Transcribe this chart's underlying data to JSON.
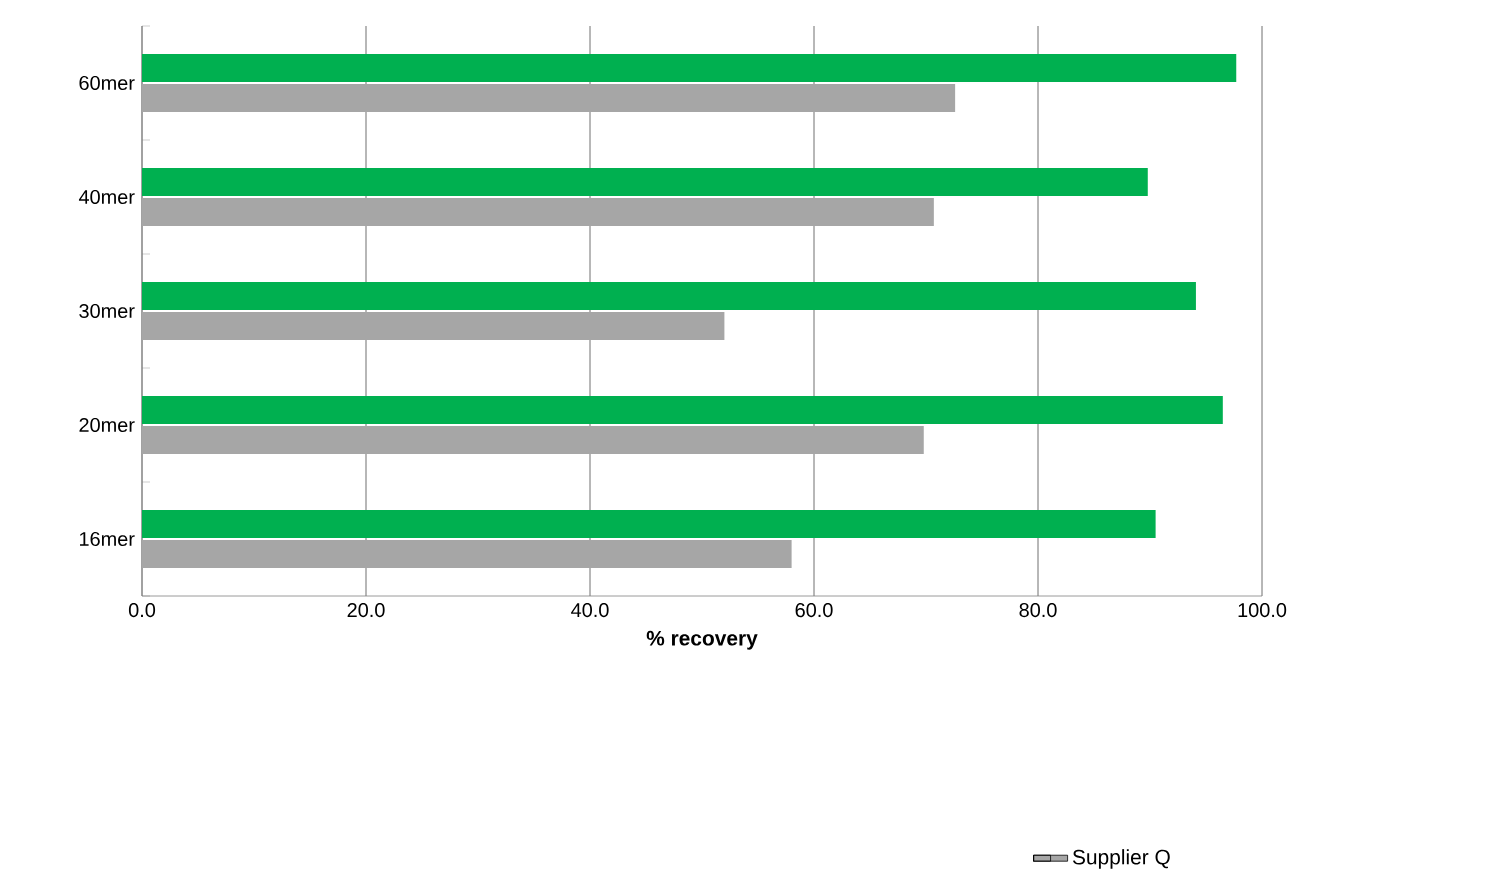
{
  "chart_data": {
    "type": "bar",
    "orientation": "horizontal",
    "xlabel": "% recovery",
    "categories": [
      "60mer",
      "40mer",
      "30mer",
      "20mer",
      "16mer"
    ],
    "series": [
      {
        "color": "#00b050",
        "values": [
          97.7,
          89.8,
          94.1,
          96.5,
          90.5
        ]
      },
      {
        "name": "Supplier Q",
        "color": "#a6a6a6",
        "values": [
          72.6,
          70.7,
          52.0,
          69.8,
          58.0
        ]
      }
    ],
    "xlim": [
      0,
      100
    ],
    "xticks": [
      {
        "value": 0,
        "label": "0.0"
      },
      {
        "value": 20,
        "label": "20.0"
      },
      {
        "value": 40,
        "label": "40.0"
      },
      {
        "value": 60,
        "label": "60.0"
      },
      {
        "value": 80,
        "label": "80.0"
      },
      {
        "value": 100,
        "label": "100.0"
      }
    ],
    "grid": "x",
    "legend": "bottom right"
  }
}
